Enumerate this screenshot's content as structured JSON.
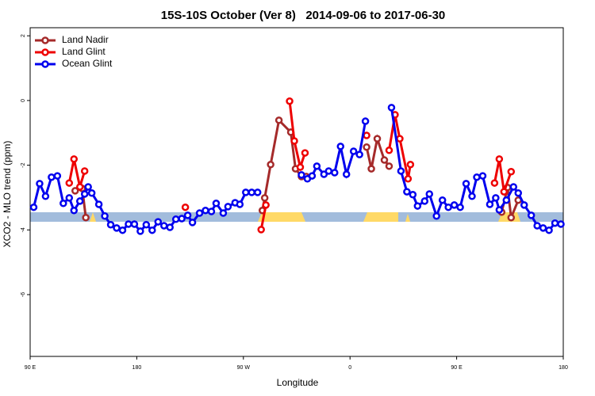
{
  "chart_data": {
    "type": "line",
    "title": "15S-10S October (Ver 8)   2014-09-06 to 2017-06-30",
    "x_label": "Longitude",
    "y_label": "XCO2 - MLO trend (ppm)",
    "xlim": [
      90,
      540
    ],
    "ylim": [
      -7.91,
      2.25
    ],
    "xticks": [
      {
        "value": 90,
        "label": "90 E"
      },
      180,
      {
        "value": 270,
        "label": "90 W"
      },
      {
        "value": 360,
        "label": "0"
      },
      {
        "value": 450,
        "label": "90 E"
      },
      {
        "value": 540,
        "label": "180"
      }
    ],
    "yticks": [
      2,
      0,
      -2,
      -4,
      -6
    ],
    "legend": "top-left",
    "series": [
      {
        "name": "Land Nadir",
        "color": "#a52a2a",
        "x": [
          128,
          134,
          137,
          null,
          286,
          288,
          293,
          300,
          310,
          314,
          319,
          323,
          null,
          374,
          378,
          383,
          389,
          393,
          null,
          488,
          493,
          496,
          502
        ],
        "values": [
          -2.79,
          -2.72,
          -3.62,
          null,
          -3.4,
          -3.01,
          -1.98,
          -0.61,
          -0.98,
          -2.11,
          -2.35,
          -2.35,
          null,
          -1.44,
          -2.11,
          -1.18,
          -1.84,
          -2.03,
          null,
          -3.45,
          -2.69,
          -3.62,
          -3.08
        ]
      },
      {
        "name": "Land Glint",
        "color": "#ee0000",
        "x": [
          123,
          127,
          132,
          136,
          null,
          221,
          null,
          285,
          289,
          null,
          309,
          313,
          318,
          322,
          null,
          374,
          null,
          393,
          398,
          402,
          409,
          411,
          null,
          482,
          486,
          490,
          496
        ],
        "values": [
          -2.55,
          -1.81,
          -2.67,
          -2.18,
          null,
          -3.3,
          null,
          -3.99,
          -3.23,
          null,
          -0.02,
          -1.25,
          -2.06,
          -1.62,
          null,
          -1.08,
          null,
          -1.54,
          -0.44,
          -1.18,
          -2.42,
          -1.98,
          null,
          -2.55,
          -1.81,
          -2.82,
          -2.2
        ]
      },
      {
        "name": "Ocean Glint",
        "color": "#0000ee",
        "x": [
          93,
          98,
          103,
          108,
          113,
          118,
          123,
          127,
          132,
          136,
          139,
          142,
          148,
          153,
          158,
          163,
          168,
          173,
          178,
          183,
          188,
          193,
          198,
          203,
          208,
          213,
          218,
          223,
          227,
          233,
          238,
          243,
          247,
          253,
          257,
          263,
          267,
          272,
          277,
          282,
          null,
          319,
          324,
          328,
          332,
          338,
          342,
          347,
          352,
          357,
          363,
          368,
          373,
          null,
          395,
          403,
          408,
          413,
          417,
          423,
          427,
          433,
          438,
          443,
          448,
          453,
          458,
          463,
          467,
          472,
          478,
          483,
          486,
          492,
          498,
          502,
          507,
          513,
          518,
          523,
          528,
          533,
          538
        ],
        "values": [
          -3.3,
          -2.57,
          -2.96,
          -2.37,
          -2.33,
          -3.18,
          -3.01,
          -3.4,
          -3.11,
          -2.89,
          -2.67,
          -2.86,
          -3.21,
          -3.57,
          -3.84,
          -3.94,
          -4.01,
          -3.82,
          -3.82,
          -4.04,
          -3.84,
          -4.01,
          -3.75,
          -3.87,
          -3.92,
          -3.67,
          -3.65,
          -3.55,
          -3.77,
          -3.48,
          -3.4,
          -3.43,
          -3.18,
          -3.48,
          -3.28,
          -3.16,
          -3.21,
          -2.84,
          -2.84,
          -2.84,
          null,
          -2.3,
          -2.42,
          -2.33,
          -2.03,
          -2.28,
          -2.18,
          -2.23,
          -1.42,
          -2.28,
          -1.57,
          -1.67,
          -0.64,
          null,
          -0.22,
          -2.18,
          -2.82,
          -2.91,
          -3.26,
          -3.11,
          -2.89,
          -3.57,
          -3.08,
          -3.3,
          -3.23,
          -3.3,
          -2.57,
          -2.96,
          -2.37,
          -2.33,
          -3.21,
          -3.01,
          -3.38,
          -3.08,
          -2.67,
          -2.86,
          -3.23,
          -3.55,
          -3.87,
          -3.94,
          -4.01,
          -3.79,
          -3.82
        ]
      }
    ]
  }
}
